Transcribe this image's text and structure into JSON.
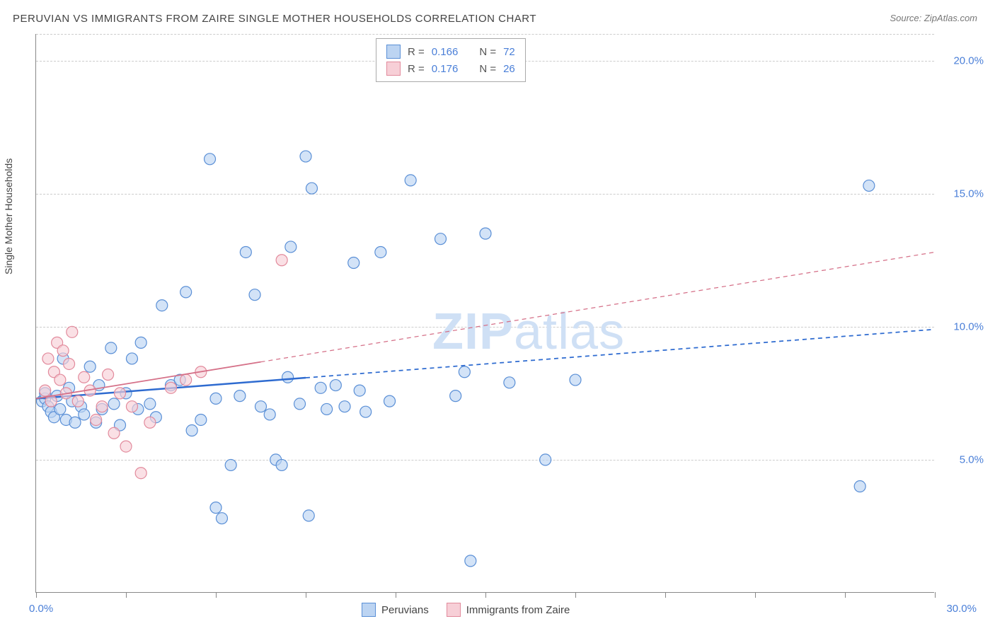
{
  "title": "PERUVIAN VS IMMIGRANTS FROM ZAIRE SINGLE MOTHER HOUSEHOLDS CORRELATION CHART",
  "source_label": "Source: ZipAtlas.com",
  "y_axis_label": "Single Mother Households",
  "watermark_zip": "ZIP",
  "watermark_atlas": "atlas",
  "chart": {
    "type": "scatter",
    "xlim": [
      0,
      30
    ],
    "ylim": [
      0,
      21
    ],
    "x_ticks": [
      0,
      3,
      6,
      9,
      12,
      15,
      18,
      21,
      24,
      27,
      30
    ],
    "x_tick_labels": {
      "0": "0.0%",
      "30": "30.0%"
    },
    "y_gridlines": [
      5,
      10,
      15,
      20,
      21
    ],
    "y_tick_labels": {
      "5": "5.0%",
      "10": "10.0%",
      "15": "15.0%",
      "20": "20.0%"
    },
    "background_color": "#ffffff",
    "grid_color": "#cccccc",
    "axis_color": "#888888",
    "marker_radius": 8,
    "marker_stroke_width": 1.2,
    "marker_fill_opacity": 0.35,
    "series": [
      {
        "name": "Peruvians",
        "color_fill": "#bcd4f2",
        "color_stroke": "#5a8fd6",
        "r_value": "0.166",
        "n_value": "72",
        "trend": {
          "x1": 0,
          "y1": 7.3,
          "x2": 30,
          "y2": 9.9,
          "solid_until_x": 9.0,
          "stroke_width": 2.5,
          "color": "#2e6bd0"
        },
        "points": [
          [
            0.2,
            7.2
          ],
          [
            0.3,
            7.3
          ],
          [
            0.3,
            7.5
          ],
          [
            0.4,
            7.0
          ],
          [
            0.5,
            6.8
          ],
          [
            0.6,
            6.6
          ],
          [
            0.7,
            7.4
          ],
          [
            0.8,
            6.9
          ],
          [
            0.9,
            8.8
          ],
          [
            1.0,
            6.5
          ],
          [
            1.1,
            7.7
          ],
          [
            1.2,
            7.2
          ],
          [
            1.3,
            6.4
          ],
          [
            1.5,
            7.0
          ],
          [
            1.6,
            6.7
          ],
          [
            1.8,
            8.5
          ],
          [
            2.0,
            6.4
          ],
          [
            2.1,
            7.8
          ],
          [
            2.2,
            6.9
          ],
          [
            2.5,
            9.2
          ],
          [
            2.6,
            7.1
          ],
          [
            2.8,
            6.3
          ],
          [
            3.0,
            7.5
          ],
          [
            3.2,
            8.8
          ],
          [
            3.4,
            6.9
          ],
          [
            3.5,
            9.4
          ],
          [
            3.8,
            7.1
          ],
          [
            4.0,
            6.6
          ],
          [
            4.2,
            10.8
          ],
          [
            4.5,
            7.8
          ],
          [
            4.8,
            8.0
          ],
          [
            5.0,
            11.3
          ],
          [
            5.2,
            6.1
          ],
          [
            5.5,
            6.5
          ],
          [
            5.8,
            16.3
          ],
          [
            6.0,
            7.3
          ],
          [
            6.2,
            2.8
          ],
          [
            6.5,
            4.8
          ],
          [
            6.8,
            7.4
          ],
          [
            7.0,
            12.8
          ],
          [
            7.3,
            11.2
          ],
          [
            7.5,
            7.0
          ],
          [
            7.8,
            6.7
          ],
          [
            8.0,
            5.0
          ],
          [
            8.2,
            4.8
          ],
          [
            8.5,
            13.0
          ],
          [
            8.8,
            7.1
          ],
          [
            9.0,
            16.4
          ],
          [
            9.1,
            2.9
          ],
          [
            9.2,
            15.2
          ],
          [
            9.5,
            7.7
          ],
          [
            9.7,
            6.9
          ],
          [
            10.0,
            7.8
          ],
          [
            10.3,
            7.0
          ],
          [
            10.6,
            12.4
          ],
          [
            10.8,
            7.6
          ],
          [
            11.0,
            6.8
          ],
          [
            11.5,
            12.8
          ],
          [
            11.8,
            7.2
          ],
          [
            12.5,
            15.5
          ],
          [
            13.5,
            13.3
          ],
          [
            14.0,
            7.4
          ],
          [
            14.5,
            1.2
          ],
          [
            15.0,
            13.5
          ],
          [
            15.8,
            7.9
          ],
          [
            17.0,
            5.0
          ],
          [
            18.0,
            8.0
          ],
          [
            27.5,
            4.0
          ],
          [
            27.8,
            15.3
          ],
          [
            14.3,
            8.3
          ],
          [
            8.4,
            8.1
          ],
          [
            6.0,
            3.2
          ]
        ]
      },
      {
        "name": "Immigrants from Zaire",
        "color_fill": "#f7cfd7",
        "color_stroke": "#e28a9c",
        "r_value": "0.176",
        "n_value": "26",
        "trend": {
          "x1": 0,
          "y1": 7.3,
          "x2": 30,
          "y2": 12.8,
          "solid_until_x": 7.5,
          "stroke_width": 1.8,
          "color": "#d57088"
        },
        "points": [
          [
            0.3,
            7.6
          ],
          [
            0.4,
            8.8
          ],
          [
            0.5,
            7.2
          ],
          [
            0.6,
            8.3
          ],
          [
            0.7,
            9.4
          ],
          [
            0.8,
            8.0
          ],
          [
            0.9,
            9.1
          ],
          [
            1.0,
            7.5
          ],
          [
            1.1,
            8.6
          ],
          [
            1.2,
            9.8
          ],
          [
            1.4,
            7.2
          ],
          [
            1.6,
            8.1
          ],
          [
            1.8,
            7.6
          ],
          [
            2.0,
            6.5
          ],
          [
            2.2,
            7.0
          ],
          [
            2.4,
            8.2
          ],
          [
            2.6,
            6.0
          ],
          [
            2.8,
            7.5
          ],
          [
            3.0,
            5.5
          ],
          [
            3.2,
            7.0
          ],
          [
            3.5,
            4.5
          ],
          [
            3.8,
            6.4
          ],
          [
            4.5,
            7.7
          ],
          [
            5.0,
            8.0
          ],
          [
            5.5,
            8.3
          ],
          [
            8.2,
            12.5
          ]
        ]
      }
    ]
  },
  "legend_top": {
    "r_label": "R =",
    "n_label": "N ="
  },
  "legend_bottom": {
    "items": [
      "Peruvians",
      "Immigrants from Zaire"
    ]
  }
}
